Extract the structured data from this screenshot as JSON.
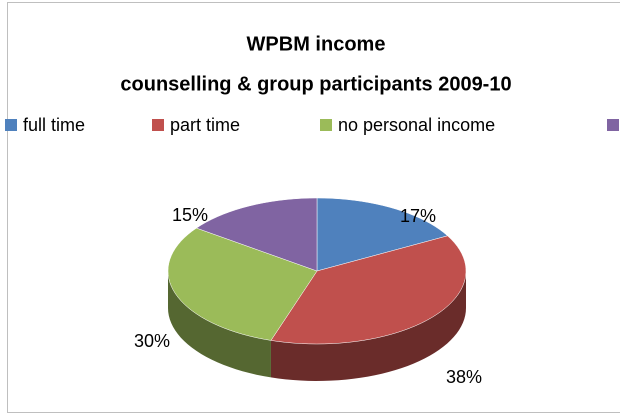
{
  "chart_data": {
    "type": "pie3d",
    "title": "WPBM income",
    "subtitle": "counselling & group participants 2009-10",
    "categories": [
      "full time",
      "part time",
      "no personal income",
      null
    ],
    "values": [
      17,
      38,
      30,
      15
    ],
    "value_labels": [
      "17%",
      "38%",
      "30%",
      "15%"
    ],
    "colors": [
      "#4f81bd",
      "#c0504d",
      "#9bbb59",
      "#8064a2"
    ],
    "legend": "top"
  }
}
